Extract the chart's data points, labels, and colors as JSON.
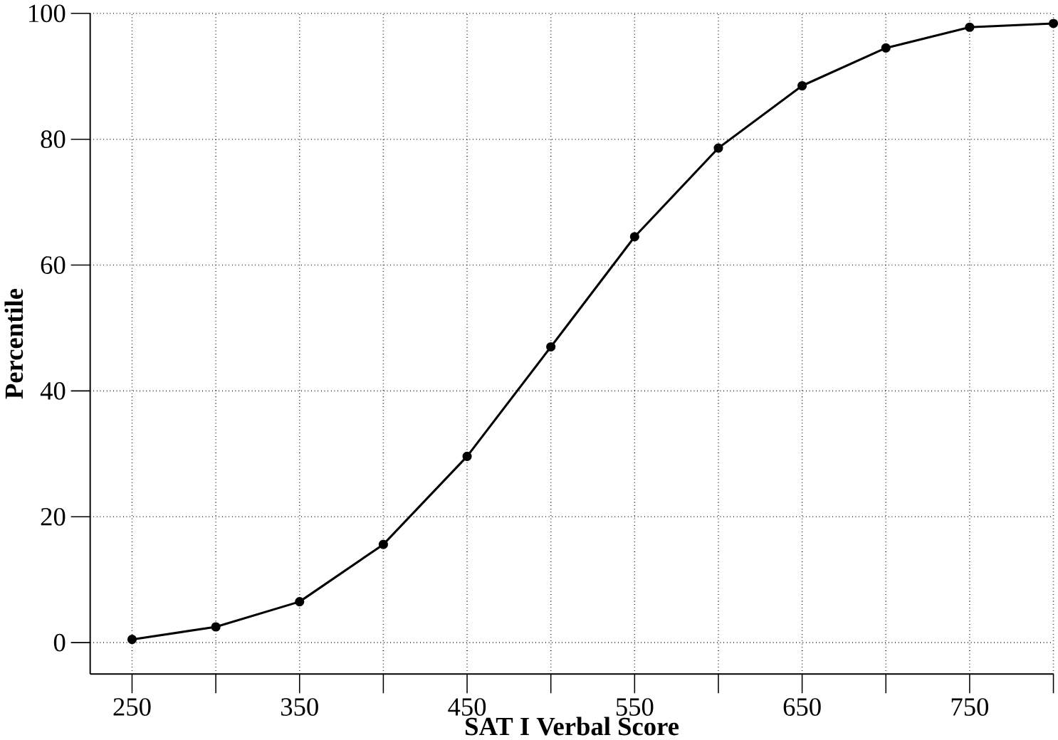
{
  "chart_data": {
    "type": "line",
    "xlabel": "SAT I Verbal Score",
    "ylabel": "Percentile",
    "x": [
      250,
      300,
      350,
      400,
      450,
      500,
      550,
      600,
      650,
      700,
      750,
      800
    ],
    "series": [
      {
        "color": "#000000",
        "values": [
          0.5,
          2.5,
          6.5,
          15.6,
          29.6,
          47,
          64.5,
          78.6,
          88.5,
          94.5,
          97.8,
          98.4
        ]
      }
    ],
    "xlim": [
      225,
      800
    ],
    "ylim": [
      -5,
      100
    ],
    "xticks": [
      250,
      {
        "value": 300,
        "label": null
      },
      350,
      {
        "value": 400,
        "label": null
      },
      450,
      {
        "value": 500,
        "label": null
      },
      550,
      {
        "value": 600,
        "label": null
      },
      650,
      {
        "value": 700,
        "label": null
      },
      750,
      {
        "value": 800,
        "label": null
      }
    ],
    "yticks": [
      0,
      20,
      40,
      60,
      80,
      100
    ],
    "grid": true,
    "marker": "circle",
    "line_style": "solid"
  }
}
